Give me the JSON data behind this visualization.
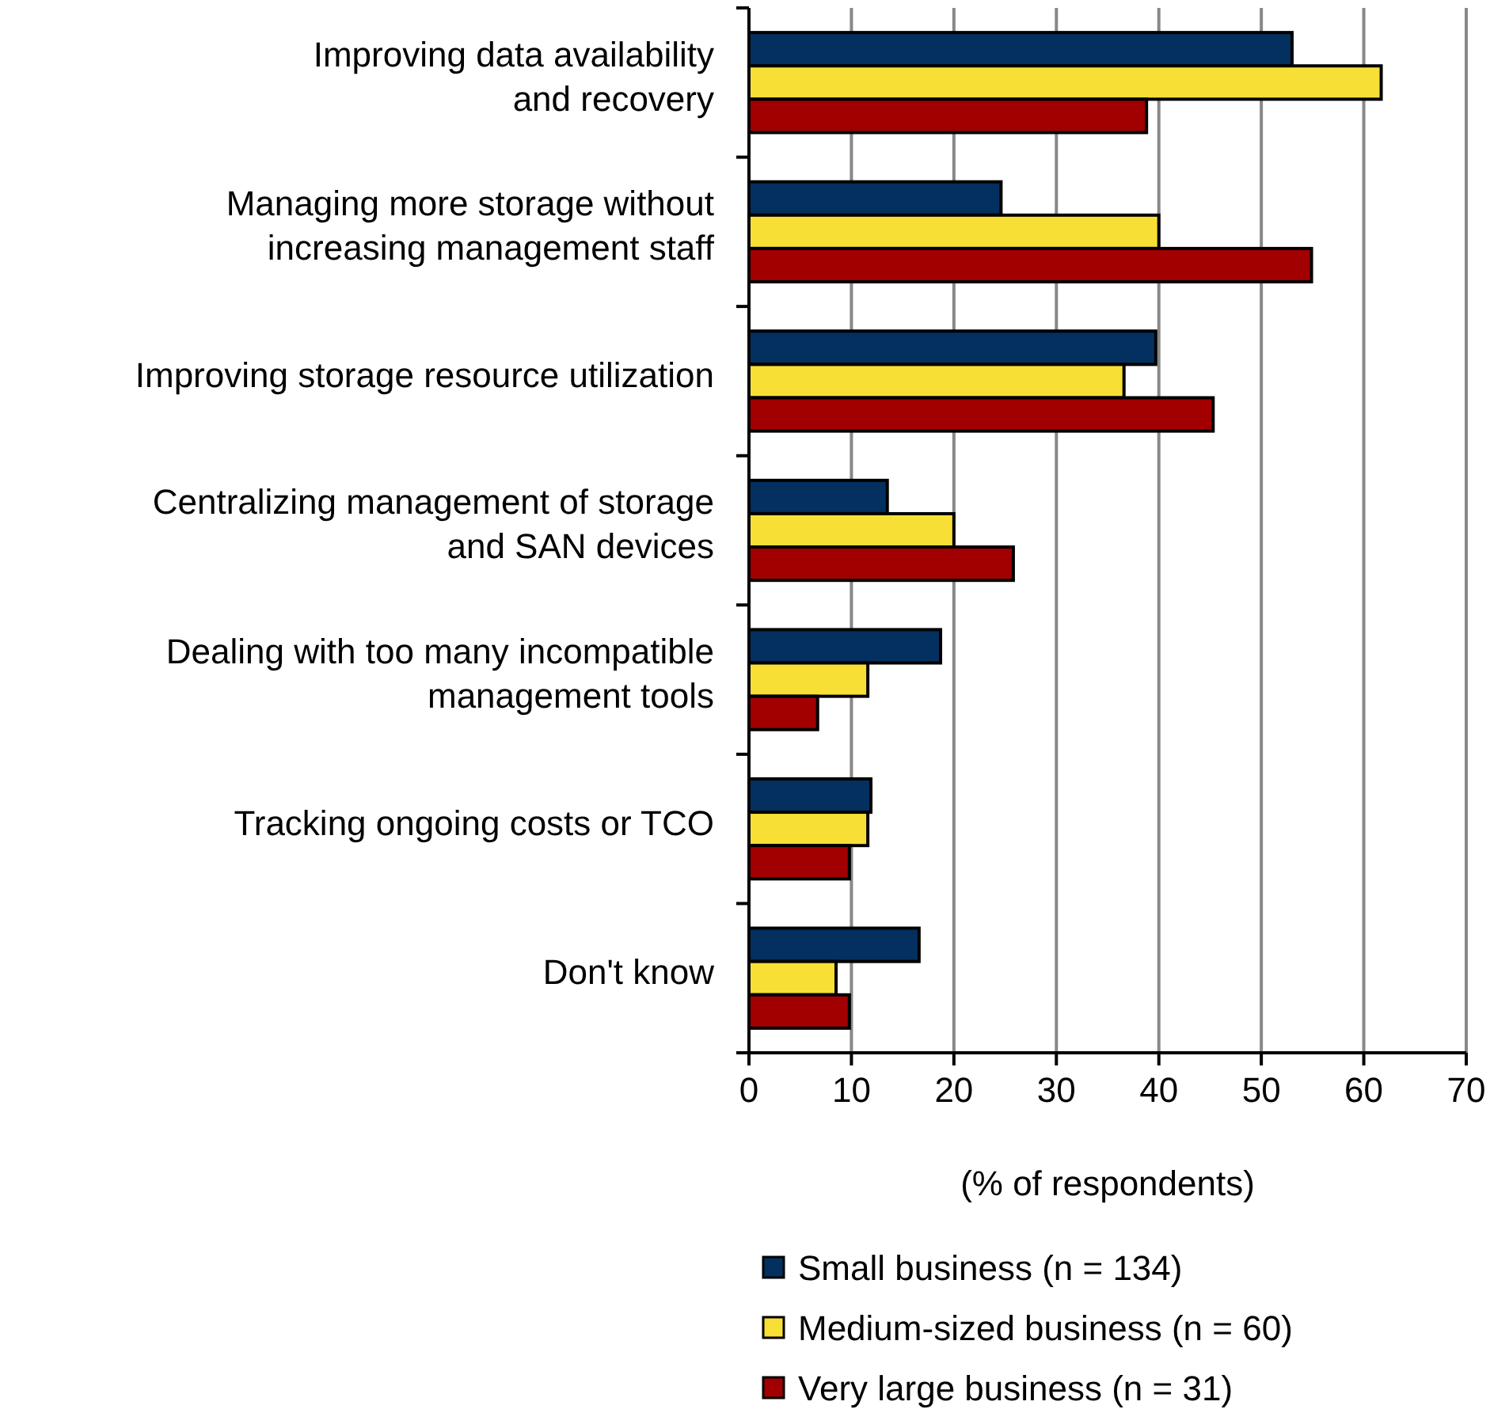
{
  "chart_data": {
    "type": "bar",
    "orientation": "horizontal",
    "categories": [
      "Improving data availability\nand recovery",
      "Managing more storage without\nincreasing management staff",
      "Improving storage resource utilization",
      "Centralizing management of storage\nand SAN devices",
      "Dealing with too many incompatible\nmanagement tools",
      "Tracking ongoing costs or TCO",
      "Don't know"
    ],
    "series": [
      {
        "name": "Small business (n = 134)",
        "color": "#03305f",
        "values": [
          53.0,
          24.6,
          39.7,
          13.5,
          18.7,
          11.9,
          16.6
        ]
      },
      {
        "name": "Medium-sized business (n = 60)",
        "color": "#f8df36",
        "values": [
          61.7,
          40.0,
          36.6,
          20.0,
          11.6,
          11.6,
          8.5
        ]
      },
      {
        "name": "Very large business (n = 31)",
        "color": "#a20000",
        "values": [
          38.8,
          54.9,
          45.3,
          25.8,
          6.7,
          9.8,
          9.8
        ]
      }
    ],
    "xlabel": "(% of respondents)",
    "xlim": [
      0,
      70
    ],
    "xticks": [
      0,
      10,
      20,
      30,
      40,
      50,
      60,
      70
    ],
    "grid": "x",
    "legend": "bottom"
  }
}
